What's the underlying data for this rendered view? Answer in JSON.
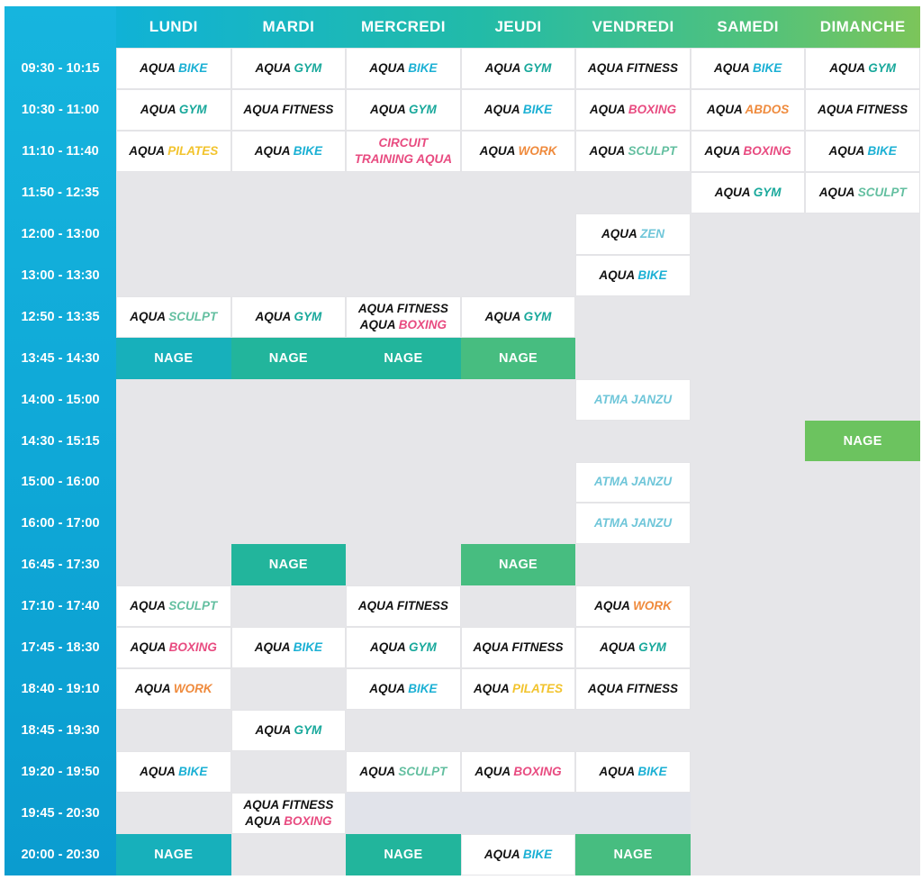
{
  "colors": {
    "bike": "#1bb0d4",
    "gym": "#18a89b",
    "fitness": "#111111",
    "pilates": "#f2c32c",
    "boxing": "#e84b80",
    "abdos": "#ef8a3c",
    "circuit": "#e84b80",
    "work": "#ef8a3c",
    "sculpt": "#63bfa0",
    "zen": "#6fc6d9",
    "atma": "#6fc6d9",
    "time_column": "#13afd9",
    "gap_row": "#e1e3ea",
    "empty_cell": "#e6e6e9",
    "nage_blue_teal": "#17b0bb",
    "nage_teal": "#22b59c",
    "nage_green": "#47bd80",
    "nage_light_green": "#6cc35f"
  },
  "days": [
    "LUNDI",
    "MARDI",
    "MERCREDI",
    "JEUDI",
    "VENDREDI",
    "SAMEDI",
    "DIMANCHE"
  ],
  "times": [
    "09:30 - 10:15",
    "10:30 - 11:00",
    "11:10 - 11:40",
    "11:50 - 12:35",
    "12:00 - 13:00",
    "13:00 - 13:30",
    "12:50 - 13:35",
    "13:45 - 14:30",
    "14:00 - 15:00",
    "14:30 - 15:15",
    "15:00 - 16:00",
    "16:00 - 17:00",
    "16:45 - 17:30",
    "17:10 - 17:40",
    "17:45 - 18:30",
    "18:40 - 19:10",
    "18:45 - 19:30",
    "19:20 - 19:50",
    "19:45 - 20:30",
    "20:00 - 20:30"
  ],
  "sessions": [
    {
      "row": 0,
      "col": 0,
      "kind": "class",
      "lines": [
        [
          {
            "t": "AQUA ",
            "c": "w"
          },
          {
            "t": "BIKE",
            "c": "bike"
          }
        ]
      ]
    },
    {
      "row": 0,
      "col": 1,
      "kind": "class",
      "lines": [
        [
          {
            "t": "AQUA ",
            "c": "w"
          },
          {
            "t": "GYM",
            "c": "gym"
          }
        ]
      ]
    },
    {
      "row": 0,
      "col": 2,
      "kind": "class",
      "lines": [
        [
          {
            "t": "AQUA ",
            "c": "w"
          },
          {
            "t": "BIKE",
            "c": "bike"
          }
        ]
      ]
    },
    {
      "row": 0,
      "col": 3,
      "kind": "class",
      "lines": [
        [
          {
            "t": "AQUA ",
            "c": "w"
          },
          {
            "t": "GYM",
            "c": "gym"
          }
        ]
      ]
    },
    {
      "row": 0,
      "col": 4,
      "kind": "class",
      "lines": [
        [
          {
            "t": "AQUA FITNESS",
            "c": "fitness"
          }
        ]
      ]
    },
    {
      "row": 0,
      "col": 5,
      "kind": "class",
      "lines": [
        [
          {
            "t": "AQUA ",
            "c": "w"
          },
          {
            "t": "BIKE",
            "c": "bike"
          }
        ]
      ]
    },
    {
      "row": 0,
      "col": 6,
      "kind": "class",
      "lines": [
        [
          {
            "t": "AQUA ",
            "c": "w"
          },
          {
            "t": "GYM",
            "c": "gym"
          }
        ]
      ]
    },
    {
      "row": 1,
      "col": 0,
      "kind": "class",
      "lines": [
        [
          {
            "t": "AQUA ",
            "c": "w"
          },
          {
            "t": "GYM",
            "c": "gym"
          }
        ]
      ]
    },
    {
      "row": 1,
      "col": 1,
      "kind": "class",
      "lines": [
        [
          {
            "t": "AQUA FITNESS",
            "c": "fitness"
          }
        ]
      ]
    },
    {
      "row": 1,
      "col": 2,
      "kind": "class",
      "lines": [
        [
          {
            "t": "AQUA ",
            "c": "w"
          },
          {
            "t": "GYM",
            "c": "gym"
          }
        ]
      ]
    },
    {
      "row": 1,
      "col": 3,
      "kind": "class",
      "lines": [
        [
          {
            "t": "AQUA ",
            "c": "w"
          },
          {
            "t": "BIKE",
            "c": "bike"
          }
        ]
      ]
    },
    {
      "row": 1,
      "col": 4,
      "kind": "class",
      "lines": [
        [
          {
            "t": "AQUA ",
            "c": "w"
          },
          {
            "t": "BOXING",
            "c": "boxing"
          }
        ]
      ]
    },
    {
      "row": 1,
      "col": 5,
      "kind": "class",
      "lines": [
        [
          {
            "t": "AQUA ",
            "c": "w"
          },
          {
            "t": "ABDOS",
            "c": "abdos"
          }
        ]
      ]
    },
    {
      "row": 1,
      "col": 6,
      "kind": "class",
      "lines": [
        [
          {
            "t": "AQUA FITNESS",
            "c": "fitness"
          }
        ]
      ]
    },
    {
      "row": 2,
      "col": 0,
      "kind": "class",
      "lines": [
        [
          {
            "t": "AQUA ",
            "c": "w"
          },
          {
            "t": "PILATES",
            "c": "pilates"
          }
        ]
      ]
    },
    {
      "row": 2,
      "col": 1,
      "kind": "class",
      "lines": [
        [
          {
            "t": "AQUA ",
            "c": "w"
          },
          {
            "t": "BIKE",
            "c": "bike"
          }
        ]
      ]
    },
    {
      "row": 2,
      "col": 2,
      "kind": "class",
      "lines": [
        [
          {
            "t": "CIRCUIT",
            "c": "circuit"
          }
        ],
        [
          {
            "t": "TRAINING AQUA",
            "c": "circuit"
          }
        ]
      ]
    },
    {
      "row": 2,
      "col": 3,
      "kind": "class",
      "lines": [
        [
          {
            "t": "AQUA ",
            "c": "w"
          },
          {
            "t": "WORK",
            "c": "work"
          }
        ]
      ]
    },
    {
      "row": 2,
      "col": 4,
      "kind": "class",
      "lines": [
        [
          {
            "t": "AQUA ",
            "c": "w"
          },
          {
            "t": "SCULPT",
            "c": "sculpt"
          }
        ]
      ]
    },
    {
      "row": 2,
      "col": 5,
      "kind": "class",
      "lines": [
        [
          {
            "t": "AQUA ",
            "c": "w"
          },
          {
            "t": "BOXING",
            "c": "boxing"
          }
        ]
      ]
    },
    {
      "row": 2,
      "col": 6,
      "kind": "class",
      "lines": [
        [
          {
            "t": "AQUA ",
            "c": "w"
          },
          {
            "t": "BIKE",
            "c": "bike"
          }
        ]
      ]
    },
    {
      "row": 3,
      "col": 5,
      "kind": "class",
      "lines": [
        [
          {
            "t": "AQUA ",
            "c": "w"
          },
          {
            "t": "GYM",
            "c": "gym"
          }
        ]
      ]
    },
    {
      "row": 3,
      "col": 6,
      "kind": "class",
      "lines": [
        [
          {
            "t": "AQUA ",
            "c": "w"
          },
          {
            "t": "SCULPT",
            "c": "sculpt"
          }
        ]
      ]
    },
    {
      "row": 4,
      "col": 4,
      "kind": "class",
      "lines": [
        [
          {
            "t": "AQUA ",
            "c": "w"
          },
          {
            "t": "ZEN",
            "c": "zen"
          }
        ]
      ]
    },
    {
      "row": 5,
      "col": 4,
      "kind": "class",
      "lines": [
        [
          {
            "t": "AQUA ",
            "c": "w"
          },
          {
            "t": "BIKE",
            "c": "bike"
          }
        ]
      ]
    },
    {
      "row": 6,
      "col": 0,
      "kind": "class",
      "lines": [
        [
          {
            "t": "AQUA ",
            "c": "w"
          },
          {
            "t": "SCULPT",
            "c": "sculpt"
          }
        ]
      ]
    },
    {
      "row": 6,
      "col": 1,
      "kind": "class",
      "lines": [
        [
          {
            "t": "AQUA ",
            "c": "w"
          },
          {
            "t": "GYM",
            "c": "gym"
          }
        ]
      ]
    },
    {
      "row": 6,
      "col": 2,
      "kind": "class",
      "lines": [
        [
          {
            "t": "AQUA FITNESS",
            "c": "fitness"
          }
        ],
        [
          {
            "t": "AQUA ",
            "c": "w"
          },
          {
            "t": "BOXING",
            "c": "boxing"
          }
        ]
      ]
    },
    {
      "row": 6,
      "col": 3,
      "kind": "class",
      "lines": [
        [
          {
            "t": "AQUA ",
            "c": "w"
          },
          {
            "t": "GYM",
            "c": "gym"
          }
        ]
      ]
    },
    {
      "row": 7,
      "col": 0,
      "kind": "nage",
      "text": "NAGE",
      "tone": "nage_blue_teal"
    },
    {
      "row": 7,
      "col": 1,
      "kind": "nage",
      "text": "NAGE",
      "tone": "nage_teal"
    },
    {
      "row": 7,
      "col": 2,
      "kind": "nage",
      "text": "NAGE",
      "tone": "nage_teal"
    },
    {
      "row": 7,
      "col": 3,
      "kind": "nage",
      "text": "NAGE",
      "tone": "nage_green"
    },
    {
      "row": 8,
      "col": 4,
      "kind": "class",
      "lines": [
        [
          {
            "t": "ATMA JANZU",
            "c": "atma"
          }
        ]
      ]
    },
    {
      "row": 9,
      "col": 6,
      "kind": "nage",
      "text": "NAGE",
      "tone": "nage_light_green"
    },
    {
      "row": 10,
      "col": 4,
      "kind": "class",
      "lines": [
        [
          {
            "t": "ATMA JANZU",
            "c": "atma"
          }
        ]
      ]
    },
    {
      "row": 11,
      "col": 4,
      "kind": "class",
      "lines": [
        [
          {
            "t": "ATMA JANZU",
            "c": "atma"
          }
        ]
      ]
    },
    {
      "row": 12,
      "col": 1,
      "kind": "nage",
      "text": "NAGE",
      "tone": "nage_teal"
    },
    {
      "row": 12,
      "col": 3,
      "kind": "nage",
      "text": "NAGE",
      "tone": "nage_green"
    },
    {
      "row": 13,
      "col": 0,
      "kind": "class",
      "lines": [
        [
          {
            "t": "AQUA ",
            "c": "w"
          },
          {
            "t": "SCULPT",
            "c": "sculpt"
          }
        ]
      ]
    },
    {
      "row": 13,
      "col": 2,
      "kind": "class",
      "lines": [
        [
          {
            "t": "AQUA FITNESS",
            "c": "fitness"
          }
        ]
      ]
    },
    {
      "row": 13,
      "col": 4,
      "kind": "class",
      "lines": [
        [
          {
            "t": "AQUA ",
            "c": "w"
          },
          {
            "t": "WORK",
            "c": "work"
          }
        ]
      ]
    },
    {
      "row": 14,
      "col": 0,
      "kind": "class",
      "lines": [
        [
          {
            "t": "AQUA ",
            "c": "w"
          },
          {
            "t": "BOXING",
            "c": "boxing"
          }
        ]
      ]
    },
    {
      "row": 14,
      "col": 1,
      "kind": "class",
      "lines": [
        [
          {
            "t": "AQUA ",
            "c": "w"
          },
          {
            "t": "BIKE",
            "c": "bike"
          }
        ]
      ]
    },
    {
      "row": 14,
      "col": 2,
      "kind": "class",
      "lines": [
        [
          {
            "t": "AQUA ",
            "c": "w"
          },
          {
            "t": "GYM",
            "c": "gym"
          }
        ]
      ]
    },
    {
      "row": 14,
      "col": 3,
      "kind": "class",
      "lines": [
        [
          {
            "t": "AQUA FITNESS",
            "c": "fitness"
          }
        ]
      ]
    },
    {
      "row": 14,
      "col": 4,
      "kind": "class",
      "lines": [
        [
          {
            "t": "AQUA ",
            "c": "w"
          },
          {
            "t": "GYM",
            "c": "gym"
          }
        ]
      ]
    },
    {
      "row": 15,
      "col": 0,
      "kind": "class",
      "lines": [
        [
          {
            "t": "AQUA ",
            "c": "w"
          },
          {
            "t": "WORK",
            "c": "work"
          }
        ]
      ]
    },
    {
      "row": 15,
      "col": 2,
      "kind": "class",
      "lines": [
        [
          {
            "t": "AQUA ",
            "c": "w"
          },
          {
            "t": "BIKE",
            "c": "bike"
          }
        ]
      ]
    },
    {
      "row": 15,
      "col": 3,
      "kind": "class",
      "lines": [
        [
          {
            "t": "AQUA ",
            "c": "w"
          },
          {
            "t": "PILATES",
            "c": "pilates"
          }
        ]
      ]
    },
    {
      "row": 15,
      "col": 4,
      "kind": "class",
      "lines": [
        [
          {
            "t": "AQUA FITNESS",
            "c": "fitness"
          }
        ]
      ]
    },
    {
      "row": 16,
      "col": 1,
      "kind": "class",
      "lines": [
        [
          {
            "t": "AQUA ",
            "c": "w"
          },
          {
            "t": "GYM",
            "c": "gym"
          }
        ]
      ]
    },
    {
      "row": 17,
      "col": 0,
      "kind": "class",
      "lines": [
        [
          {
            "t": "AQUA ",
            "c": "w"
          },
          {
            "t": "BIKE",
            "c": "bike"
          }
        ]
      ]
    },
    {
      "row": 17,
      "col": 2,
      "kind": "class",
      "lines": [
        [
          {
            "t": "AQUA ",
            "c": "w"
          },
          {
            "t": "SCULPT",
            "c": "sculpt"
          }
        ]
      ]
    },
    {
      "row": 17,
      "col": 3,
      "kind": "class",
      "lines": [
        [
          {
            "t": "AQUA ",
            "c": "w"
          },
          {
            "t": "BOXING",
            "c": "boxing"
          }
        ]
      ]
    },
    {
      "row": 17,
      "col": 4,
      "kind": "class",
      "lines": [
        [
          {
            "t": "AQUA ",
            "c": "w"
          },
          {
            "t": "BIKE",
            "c": "bike"
          }
        ]
      ]
    },
    {
      "row": 18,
      "col": 1,
      "kind": "class",
      "lines": [
        [
          {
            "t": "AQUA FITNESS",
            "c": "fitness"
          }
        ],
        [
          {
            "t": "AQUA ",
            "c": "w"
          },
          {
            "t": "BOXING",
            "c": "boxing"
          }
        ]
      ]
    },
    {
      "row": 19,
      "col": 0,
      "kind": "nage",
      "text": "NAGE",
      "tone": "nage_blue_teal"
    },
    {
      "row": 19,
      "col": 2,
      "kind": "nage",
      "text": "NAGE",
      "tone": "nage_teal"
    },
    {
      "row": 19,
      "col": 3,
      "kind": "class",
      "lines": [
        [
          {
            "t": "AQUA ",
            "c": "w"
          },
          {
            "t": "BIKE",
            "c": "bike"
          }
        ]
      ]
    },
    {
      "row": 19,
      "col": 4,
      "kind": "nage",
      "text": "NAGE",
      "tone": "nage_green"
    }
  ]
}
